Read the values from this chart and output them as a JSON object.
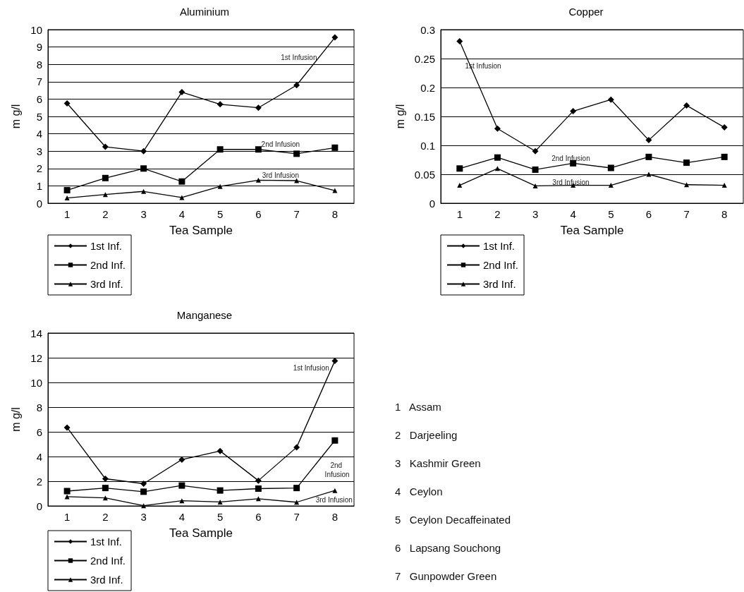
{
  "chart_data": [
    {
      "type": "line",
      "title": "Aluminium",
      "xlabel": "Tea Sample",
      "ylabel": "m g/l",
      "categories": [
        "1",
        "2",
        "3",
        "4",
        "5",
        "6",
        "7",
        "8"
      ],
      "ylim": [
        0,
        10
      ],
      "yticks": [
        0,
        1,
        2,
        3,
        4,
        5,
        6,
        7,
        8,
        9,
        10
      ],
      "grid": "y",
      "legend": "bottom left",
      "series": [
        {
          "name": "1st Inf.",
          "color": "#000000",
          "marker": "diamond",
          "values": [
            5.75,
            3.25,
            3.0,
            6.4,
            5.7,
            5.5,
            6.8,
            9.55
          ]
        },
        {
          "name": "2nd Inf.",
          "color": "#000000",
          "marker": "square",
          "values": [
            0.75,
            1.45,
            2.0,
            1.25,
            3.1,
            3.1,
            2.85,
            3.2
          ]
        },
        {
          "name": "3rd Inf.",
          "color": "#000000",
          "marker": "triangle",
          "values": [
            0.3,
            0.5,
            0.68,
            0.33,
            0.97,
            1.33,
            1.3,
            0.73
          ]
        }
      ],
      "annotations": [
        "1st Infusion",
        "2nd Infusion",
        "3rd Infusion"
      ]
    },
    {
      "type": "line",
      "title": "Copper",
      "xlabel": "Tea Sample",
      "ylabel": "m g/l",
      "categories": [
        "1",
        "2",
        "3",
        "4",
        "5",
        "6",
        "7",
        "8"
      ],
      "ylim": [
        0,
        0.3
      ],
      "yticks": [
        0,
        0.05,
        0.1,
        0.15,
        0.2,
        0.25,
        0.3
      ],
      "grid": "y",
      "legend": "bottom left",
      "series": [
        {
          "name": "1st Inf.",
          "color": "#000000",
          "marker": "diamond",
          "values": [
            0.28,
            0.129,
            0.09,
            0.159,
            0.179,
            0.109,
            0.169,
            0.131
          ]
        },
        {
          "name": "2nd Inf.",
          "color": "#000000",
          "marker": "square",
          "values": [
            0.06,
            0.079,
            0.058,
            0.069,
            0.061,
            0.08,
            0.07,
            0.08
          ]
        },
        {
          "name": "3rd Inf.",
          "color": "#000000",
          "marker": "triangle",
          "values": [
            0.031,
            0.06,
            0.03,
            0.031,
            0.031,
            0.05,
            0.032,
            0.031
          ]
        }
      ],
      "annotations": [
        "1st Infusion",
        "2nd Infusion",
        "3rd Infusion"
      ]
    },
    {
      "type": "line",
      "title": "Manganese",
      "xlabel": "Tea Sample",
      "ylabel": "m g/l",
      "categories": [
        "1",
        "2",
        "3",
        "4",
        "5",
        "6",
        "7",
        "8"
      ],
      "ylim": [
        0,
        14
      ],
      "yticks": [
        0,
        2,
        4,
        6,
        8,
        10,
        12,
        14
      ],
      "grid": "y",
      "legend": "bottom left",
      "series": [
        {
          "name": "1st Inf.",
          "color": "#000000",
          "marker": "diamond",
          "values": [
            6.35,
            2.2,
            1.8,
            3.75,
            4.45,
            2.05,
            4.75,
            11.75
          ]
        },
        {
          "name": "2nd Inf.",
          "color": "#000000",
          "marker": "square",
          "values": [
            1.2,
            1.45,
            1.15,
            1.65,
            1.25,
            1.4,
            1.45,
            5.3
          ]
        },
        {
          "name": "3rd Inf.",
          "color": "#000000",
          "marker": "triangle",
          "values": [
            0.75,
            0.65,
            0.02,
            0.42,
            0.32,
            0.58,
            0.3,
            1.25
          ]
        }
      ],
      "annotations": [
        "1st Infusion",
        "2nd Infusion",
        "3rd Infusion"
      ]
    },
    {
      "type": "other",
      "annotations": [
        "1 Assam",
        "2 Darjeeling",
        "3 Kashmir Green",
        "4 Ceylon",
        "5 Ceylon Decaffeinated",
        "6 Lapsang Souchong",
        "7 Gunpowder Green"
      ]
    }
  ]
}
